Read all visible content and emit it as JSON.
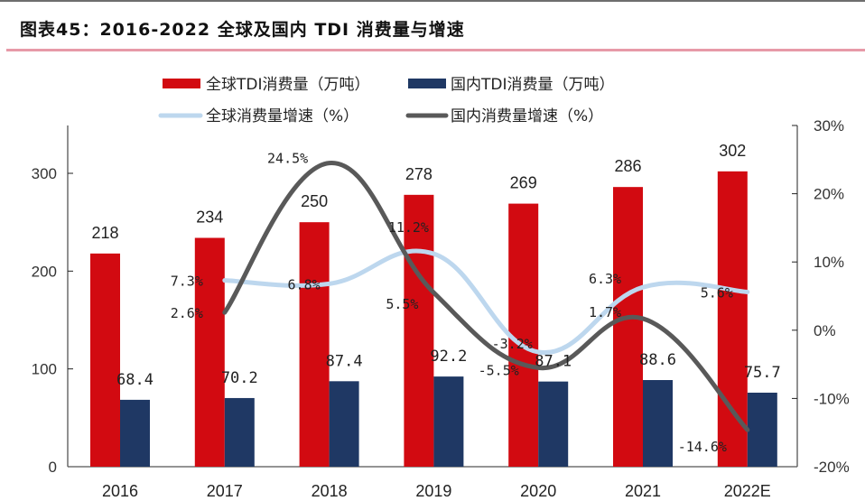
{
  "title": "图表45：2016-2022 全球及国内 TDI 消费量与增速",
  "colors": {
    "global_bar": "#d20a11",
    "domestic_bar": "#1f3864",
    "global_growth_line": "#bdd7ee",
    "domestic_growth_line": "#595959",
    "title_rule": "#e79aa8"
  },
  "chart_data": {
    "type": "bar+line",
    "title": "2016-2022 全球及国内 TDI 消费量与增速",
    "categories": [
      "2016",
      "2017",
      "2018",
      "2019",
      "2020",
      "2021",
      "2022E"
    ],
    "left_axis": {
      "label": "",
      "range": [
        0,
        350
      ],
      "ticks": [
        0,
        100,
        200,
        300
      ],
      "tick_labels": [
        "0",
        "100",
        "200",
        "300"
      ]
    },
    "right_axis": {
      "label": "",
      "range": [
        -20,
        30
      ],
      "ticks": [
        -20,
        -10,
        0,
        10,
        20,
        30
      ],
      "tick_labels": [
        "-20%",
        "-10%",
        "0%",
        "10%",
        "20%",
        "30%"
      ]
    },
    "grid": false,
    "legend_position": "top",
    "series": [
      {
        "name": "全球TDI消费量（万吨）",
        "type": "bar",
        "axis": "left",
        "values": [
          218,
          234,
          250,
          278,
          269,
          286,
          302
        ],
        "labels": [
          "218",
          "234",
          "250",
          "278",
          "269",
          "286",
          "302"
        ]
      },
      {
        "name": "国内TDI消费量（万吨）",
        "type": "bar",
        "axis": "left",
        "values": [
          68.4,
          70.2,
          87.4,
          92.2,
          87.1,
          88.6,
          75.7
        ],
        "labels": [
          "68.4",
          "70.2",
          "87.4",
          "92.2",
          "87.1",
          "88.6",
          "75.7"
        ]
      },
      {
        "name": "全球消费量增速（%）",
        "type": "line",
        "axis": "right",
        "smooth": true,
        "values": [
          null,
          7.3,
          6.8,
          11.2,
          -3.2,
          6.3,
          5.6
        ],
        "labels": [
          null,
          "7.3%",
          "6.8%",
          "11.2%",
          "-3.2%",
          "6.3%",
          "5.6%"
        ]
      },
      {
        "name": "国内消费量增速（%）",
        "type": "line",
        "axis": "right",
        "smooth": true,
        "values": [
          null,
          2.6,
          24.5,
          5.5,
          -5.5,
          1.7,
          -14.6
        ],
        "labels": [
          null,
          "2.6%",
          "24.5%",
          "5.5%",
          "-5.5%",
          "1.7%",
          "-14.6%"
        ]
      }
    ]
  }
}
